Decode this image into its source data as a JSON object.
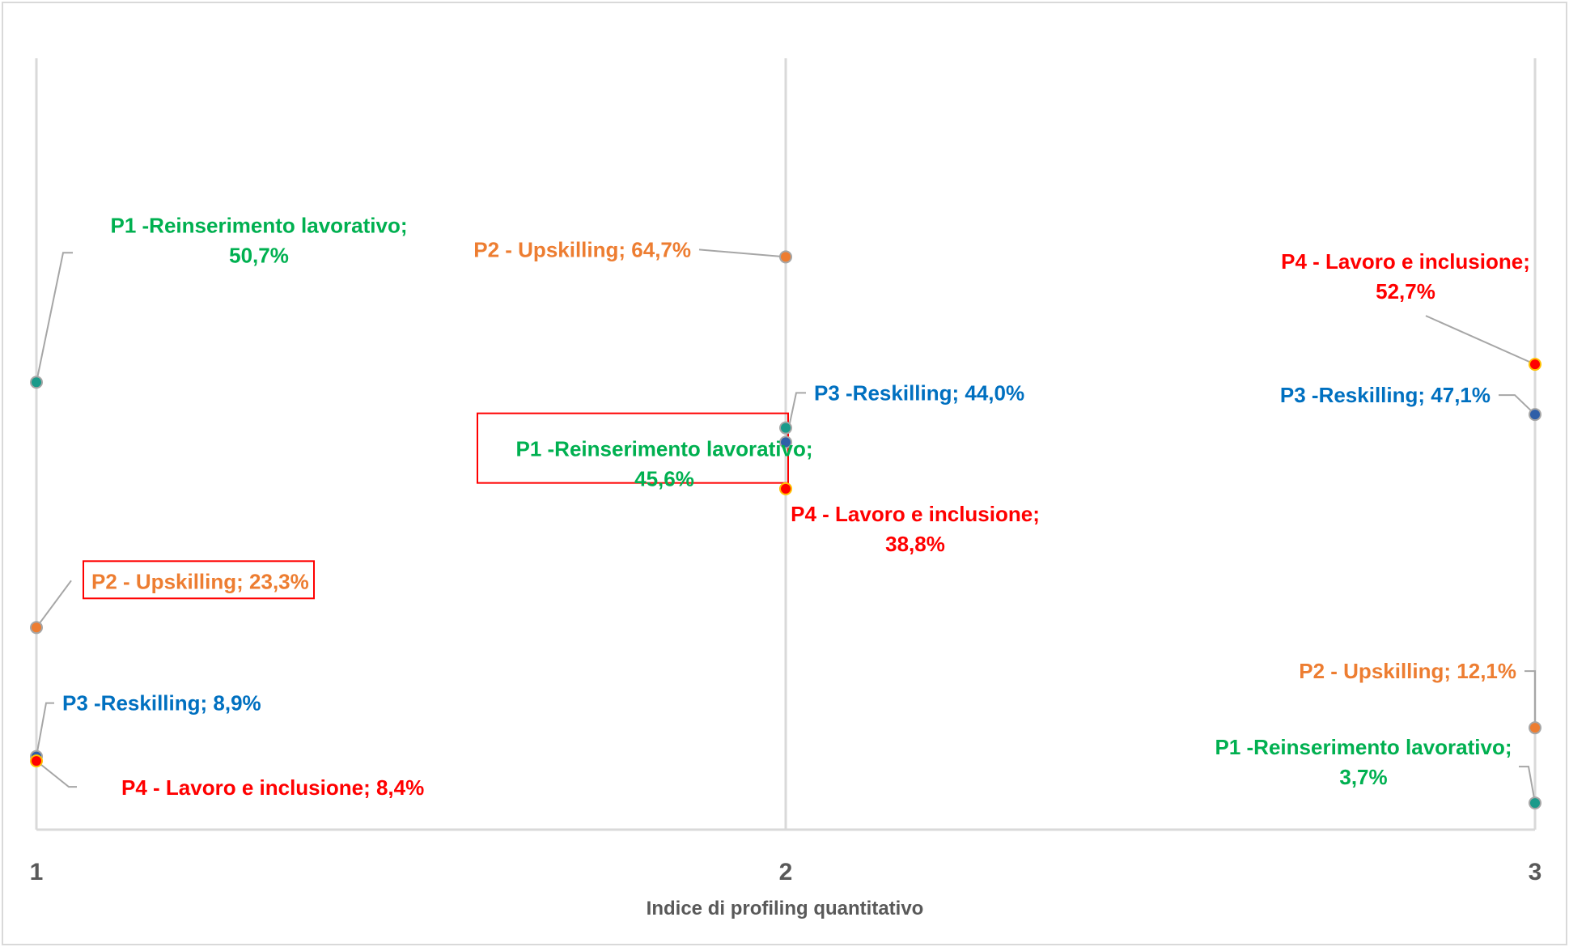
{
  "chart_data": {
    "type": "scatter",
    "xlabel": "Indice di profiling quantitativo",
    "ylabel": "",
    "title": "",
    "x_ticks": [
      "1",
      "2",
      "3"
    ],
    "xlim": [
      1,
      3
    ],
    "ylim": [
      0,
      100
    ],
    "grid": "vertical",
    "series": [
      {
        "color": "#00b050",
        "marker_fill": "#1a9a8a",
        "points": [
          {
            "x": 1,
            "y": 50.7,
            "label": "P1 -Reinserimento lavorativo;",
            "value_label": "50,7%"
          },
          {
            "x": 2,
            "y": 45.6,
            "label": "P1 -Reinserimento lavorativo;",
            "value_label": "45,6%"
          },
          {
            "x": 3,
            "y": 3.7,
            "label": "P1 -Reinserimento lavorativo;",
            "value_label": "3,7%"
          }
        ]
      },
      {
        "color": "#ed7d31",
        "marker_fill": "#ed7d31",
        "points": [
          {
            "x": 1,
            "y": 23.3,
            "label": "P2 - Upskilling; 23,3%",
            "value_label": ""
          },
          {
            "x": 2,
            "y": 64.7,
            "label": "P2 - Upskilling; 64,7%",
            "value_label": ""
          },
          {
            "x": 3,
            "y": 12.1,
            "label": "P2 - Upskilling; 12,1%",
            "value_label": ""
          }
        ]
      },
      {
        "color": "#0070c0",
        "marker_fill": "#2e5fa8",
        "points": [
          {
            "x": 1,
            "y": 8.9,
            "label": "P3 -Reskilling; 8,9%",
            "value_label": ""
          },
          {
            "x": 2,
            "y": 44.0,
            "label": "P3 -Reskilling; 44,0%",
            "value_label": ""
          },
          {
            "x": 3,
            "y": 47.1,
            "label": "P3 -Reskilling; 47,1%",
            "value_label": ""
          }
        ]
      },
      {
        "color": "#ff0000",
        "marker_fill": "#ff0000",
        "points": [
          {
            "x": 1,
            "y": 8.4,
            "label": "P4 - Lavoro e inclusione; 8,4%",
            "value_label": ""
          },
          {
            "x": 2,
            "y": 38.8,
            "label": "P4 - Lavoro e inclusione;",
            "value_label": "38,8%"
          },
          {
            "x": 3,
            "y": 52.7,
            "label": "P4 - Lavoro e inclusione;",
            "value_label": "52,7%"
          }
        ]
      }
    ]
  }
}
